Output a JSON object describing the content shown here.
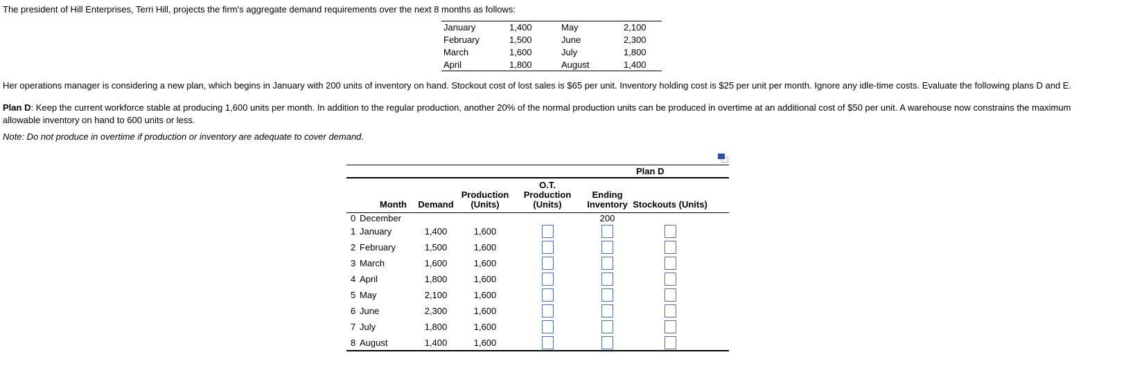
{
  "intro": "The president of Hill Enterprises, Terri Hill, projects the firm's aggregate demand requirements over the next 8 months as follows:",
  "demand_table": {
    "rows": [
      [
        "January",
        "1,400",
        "May",
        "2,100"
      ],
      [
        "February",
        "1,500",
        "June",
        "2,300"
      ],
      [
        "March",
        "1,600",
        "July",
        "1,800"
      ],
      [
        "April",
        "1,800",
        "August",
        "1,400"
      ]
    ]
  },
  "paragraph2": "Her operations manager is considering a new plan, which begins in January with 200 units of inventory on hand. Stockout cost of lost sales is $65 per unit. Inventory holding cost is $25 per unit per month. Ignore any idle-time costs. Evaluate the following plans D and E.",
  "plan_d": {
    "label": "Plan D",
    "text": ": Keep the current workforce stable at producing 1,600 units per month. In addition to the regular production, another 20% of the normal production units can be produced in overtime at an additional cost of $50 per unit. A warehouse now constrains the maximum allowable inventory on hand to 600 units or less."
  },
  "note": "Note: Do not produce in overtime if production or inventory are adequate to cover demand.",
  "plan_table": {
    "title": "Plan D",
    "columns": [
      {
        "line1": "",
        "line2": "Month"
      },
      {
        "line1": "",
        "line2": "Demand"
      },
      {
        "line1": "Production",
        "line2": "(Units)"
      },
      {
        "line1": "O.T.",
        "line2": "Production (Units)"
      },
      {
        "line1": "Ending",
        "line2": "Inventory"
      },
      {
        "line1": "",
        "line2": "Stockouts (Units)"
      }
    ],
    "rows": [
      {
        "index": "0",
        "month": "December",
        "demand": "",
        "production": "",
        "ending_inventory": "200",
        "has_inputs": false
      },
      {
        "index": "1",
        "month": "January",
        "demand": "1,400",
        "production": "1,600",
        "ending_inventory": "",
        "has_inputs": true
      },
      {
        "index": "2",
        "month": "February",
        "demand": "1,500",
        "production": "1,600",
        "ending_inventory": "",
        "has_inputs": true
      },
      {
        "index": "3",
        "month": "March",
        "demand": "1,600",
        "production": "1,600",
        "ending_inventory": "",
        "has_inputs": true
      },
      {
        "index": "4",
        "month": "April",
        "demand": "1,800",
        "production": "1,600",
        "ending_inventory": "",
        "has_inputs": true
      },
      {
        "index": "5",
        "month": "May",
        "demand": "2,100",
        "production": "1,600",
        "ending_inventory": "",
        "has_inputs": true
      },
      {
        "index": "6",
        "month": "June",
        "demand": "2,300",
        "production": "1,600",
        "ending_inventory": "",
        "has_inputs": true
      },
      {
        "index": "7",
        "month": "July",
        "demand": "1,800",
        "production": "1,600",
        "ending_inventory": "",
        "has_inputs": true
      },
      {
        "index": "8",
        "month": "August",
        "demand": "1,400",
        "production": "1,600",
        "ending_inventory": "",
        "has_inputs": true
      }
    ]
  },
  "icons": {
    "popout": "popout-table-icon"
  },
  "colors": {
    "accent_blue": "#2e4fa3",
    "input_border": "#4a6ebf",
    "rule": "#000000"
  }
}
